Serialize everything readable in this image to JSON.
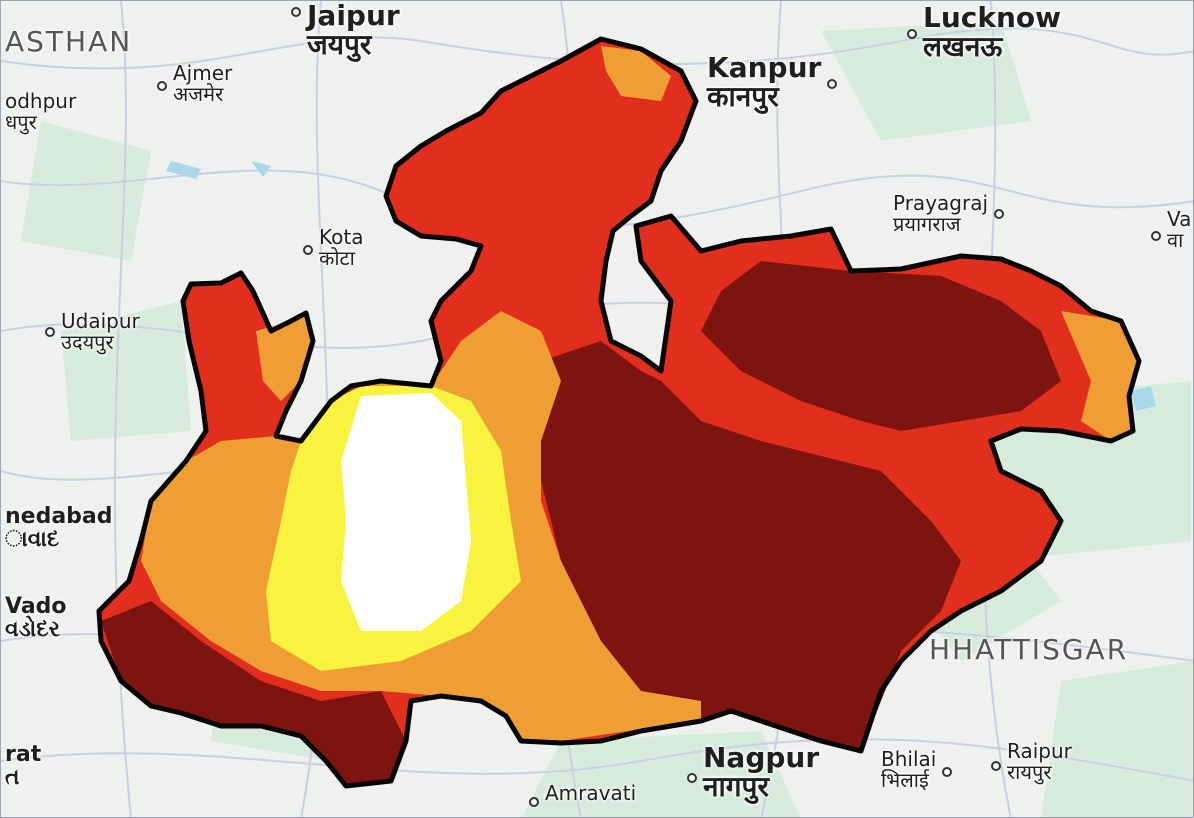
{
  "map": {
    "colors": {
      "land": "#eef1ee",
      "forest": "#cde8d4",
      "water": "#a8d8ea",
      "road": "#c9cfe3",
      "outline": "#050505",
      "class_very_high": "#7d1410",
      "class_high": "#e22e1d",
      "class_medium": "#ee9e33",
      "class_low": "#f8f33e",
      "class_very_low": "#ffffff"
    },
    "cities": [
      {
        "id": "jaipur",
        "en": "Jaipur",
        "hi": "जयपुर",
        "size": "big"
      },
      {
        "id": "lucknow",
        "en": "Lucknow",
        "hi": "लखनऊ",
        "size": "big"
      },
      {
        "id": "ajmer",
        "en": "Ajmer",
        "hi": "अजमेर",
        "size": "sm"
      },
      {
        "id": "jodhpur",
        "en": "odhpur",
        "hi": "धपुर",
        "size": "sm"
      },
      {
        "id": "kanpur",
        "en": "Kanpur",
        "hi": "कानपुर",
        "size": "big"
      },
      {
        "id": "prayagraj",
        "en": "Prayagraj",
        "hi": "प्रयागराज",
        "size": "sm"
      },
      {
        "id": "varanasi",
        "en": "Va",
        "hi": "वा",
        "size": "sm"
      },
      {
        "id": "kota",
        "en": "Kota",
        "hi": "कोटा",
        "size": "sm"
      },
      {
        "id": "udaipur",
        "en": "Udaipur",
        "hi": "उदयपुर",
        "size": "sm"
      },
      {
        "id": "ahmedabad",
        "en": "nedabad",
        "hi": "ાવાદ",
        "size": "mid"
      },
      {
        "id": "vadodara",
        "en": "Vado",
        "hi": "વડોદર",
        "size": "mid"
      },
      {
        "id": "surat",
        "en": "rat",
        "hi": "ત",
        "size": "mid"
      },
      {
        "id": "nagpur",
        "en": "Nagpur",
        "hi": "नागपुर",
        "size": "big"
      },
      {
        "id": "amravati",
        "en": "Amravati",
        "hi": "",
        "size": "sm"
      },
      {
        "id": "bhilai",
        "en": "Bhilai",
        "hi": "भिलाई",
        "size": "sm"
      },
      {
        "id": "raipur",
        "en": "Raipur",
        "hi": "रायपुर",
        "size": "sm"
      }
    ],
    "regions": [
      {
        "id": "rajasthan",
        "label": "ASTHAN"
      },
      {
        "id": "chhattisgarh",
        "label": "HHATTISGAR"
      }
    ]
  }
}
